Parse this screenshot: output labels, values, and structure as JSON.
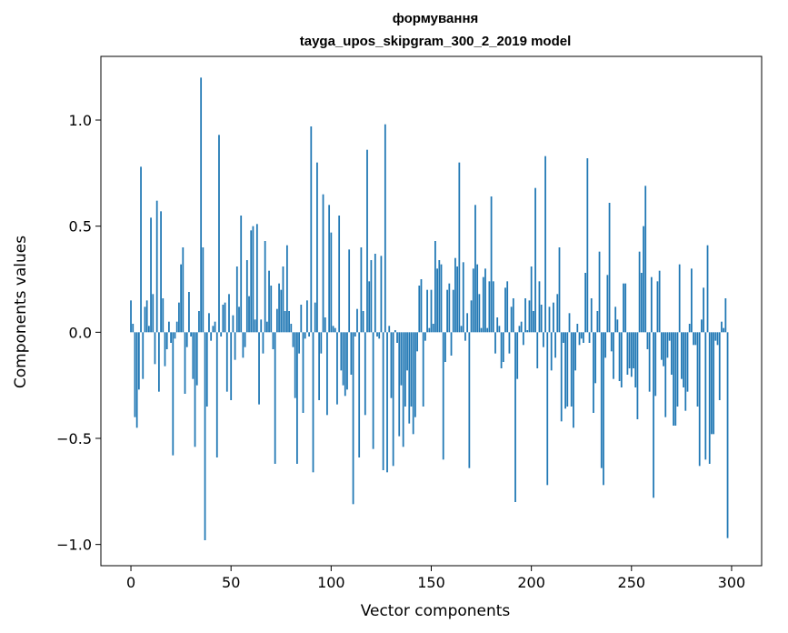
{
  "chart_data": {
    "type": "bar",
    "title": "формування",
    "subtitle": "tayga_upos_skipgram_300_2_2019 model",
    "xlabel": "Vector components",
    "ylabel": "Components values",
    "xlim": [
      -15,
      315
    ],
    "ylim": [
      -1.1,
      1.3
    ],
    "xticks": [
      0,
      50,
      100,
      150,
      200,
      250,
      300
    ],
    "yticks": [
      -1.0,
      -0.5,
      0.0,
      0.5,
      1.0
    ],
    "xtick_labels": [
      "0",
      "50",
      "100",
      "150",
      "200",
      "250",
      "300"
    ],
    "ytick_labels": [
      "−1.0",
      "−0.5",
      "0.0",
      "0.5",
      "1.0"
    ],
    "bar_color": "#1f77b4",
    "values": [
      0.15,
      0.04,
      -0.4,
      -0.45,
      -0.27,
      0.78,
      -0.22,
      0.12,
      0.15,
      0.03,
      0.54,
      0.18,
      -0.15,
      0.62,
      -0.28,
      0.57,
      0.16,
      -0.16,
      -0.08,
      0.05,
      -0.05,
      -0.58,
      -0.03,
      0.05,
      0.14,
      0.32,
      0.4,
      -0.29,
      -0.07,
      0.19,
      -0.02,
      -0.22,
      -0.54,
      -0.25,
      0.1,
      1.2,
      0.4,
      -0.98,
      -0.35,
      0.09,
      -0.04,
      0.03,
      0.05,
      -0.59,
      0.93,
      -0.02,
      0.13,
      0.14,
      -0.28,
      0.18,
      -0.32,
      0.08,
      -0.13,
      0.31,
      0.12,
      0.55,
      -0.12,
      -0.07,
      0.34,
      0.17,
      0.48,
      0.5,
      0.06,
      0.51,
      -0.34,
      0.06,
      -0.1,
      0.43,
      0.05,
      0.29,
      0.22,
      -0.08,
      -0.62,
      0.11,
      0.23,
      0.2,
      0.31,
      0.1,
      0.41,
      0.1,
      0.04,
      -0.07,
      -0.31,
      -0.62,
      -0.1,
      0.13,
      -0.38,
      -0.03,
      0.15,
      -0.02,
      0.97,
      -0.66,
      0.14,
      0.8,
      -0.32,
      -0.1,
      0.65,
      0.07,
      -0.39,
      0.6,
      0.47,
      0.03,
      0.02,
      -0.34,
      0.55,
      -0.18,
      -0.25,
      -0.3,
      -0.27,
      0.39,
      -0.2,
      -0.81,
      -0.02,
      0.11,
      -0.59,
      0.4,
      0.1,
      -0.39,
      0.86,
      0.24,
      0.34,
      -0.55,
      0.37,
      -0.02,
      -0.03,
      0.36,
      -0.65,
      0.98,
      -0.66,
      0.03,
      -0.31,
      -0.63,
      0.01,
      -0.05,
      -0.49,
      -0.25,
      -0.54,
      -0.35,
      -0.18,
      -0.43,
      -0.35,
      -0.48,
      -0.4,
      -0.09,
      0.22,
      0.25,
      -0.35,
      -0.04,
      0.2,
      0.02,
      0.2,
      0.04,
      0.43,
      0.3,
      0.34,
      0.32,
      -0.6,
      -0.14,
      0.2,
      0.23,
      -0.11,
      0.2,
      0.35,
      0.31,
      0.8,
      0.03,
      0.33,
      -0.04,
      0.09,
      -0.64,
      0.15,
      0.3,
      0.6,
      0.32,
      0.18,
      0.02,
      0.26,
      0.3,
      0.02,
      0.24,
      0.64,
      0.24,
      -0.1,
      0.07,
      0.03,
      -0.17,
      -0.14,
      0.21,
      0.24,
      -0.1,
      0.12,
      0.16,
      -0.8,
      -0.22,
      0.03,
      0.05,
      -0.06,
      0.16,
      0.01,
      0.15,
      0.31,
      0.1,
      0.68,
      -0.17,
      0.24,
      0.13,
      -0.07,
      0.83,
      -0.72,
      0.12,
      -0.18,
      0.14,
      -0.12,
      0.18,
      0.4,
      -0.42,
      -0.05,
      -0.36,
      -0.35,
      0.09,
      -0.35,
      -0.45,
      -0.18,
      0.04,
      -0.06,
      -0.03,
      -0.05,
      0.28,
      0.82,
      -0.05,
      0.16,
      -0.38,
      -0.24,
      0.1,
      0.38,
      -0.64,
      -0.72,
      -0.12,
      0.27,
      0.61,
      -0.09,
      -0.22,
      0.12,
      0.06,
      -0.23,
      -0.26,
      0.23,
      0.23,
      -0.2,
      -0.17,
      -0.21,
      -0.17,
      -0.26,
      -0.41,
      0.38,
      0.28,
      0.5,
      0.69,
      -0.08,
      -0.28,
      0.26,
      -0.78,
      -0.3,
      0.24,
      0.29,
      -0.13,
      -0.16,
      -0.4,
      -0.12,
      -0.04,
      -0.2,
      -0.44,
      -0.44,
      -0.35,
      0.32,
      -0.22,
      -0.26,
      -0.37,
      -0.28,
      0.04,
      0.3,
      -0.06,
      -0.06,
      -0.35,
      -0.63,
      0.06,
      0.21,
      -0.6,
      0.41,
      -0.62,
      -0.48,
      -0.48,
      -0.04,
      -0.06,
      -0.32,
      0.05,
      0.02,
      0.16,
      -0.97
    ],
    "grid": false,
    "legend": "none"
  }
}
